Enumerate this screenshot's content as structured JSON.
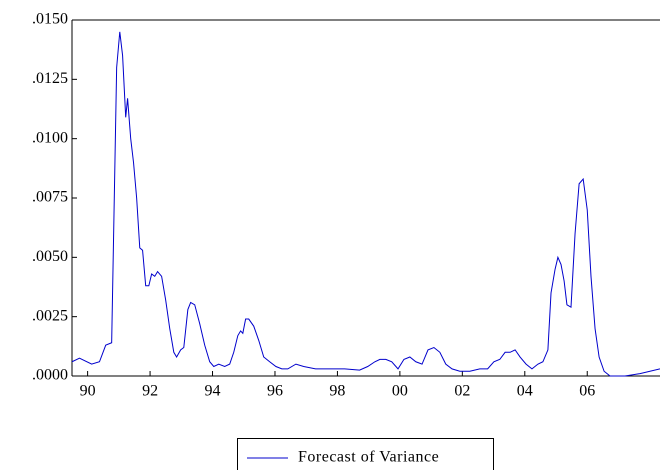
{
  "chart_data": {
    "type": "line",
    "x": [
      1990.0,
      1990.24,
      1990.63,
      1990.88,
      1991.08,
      1991.27,
      1991.43,
      1991.53,
      1991.62,
      1991.72,
      1991.78,
      1991.88,
      1991.97,
      1992.07,
      1992.17,
      1992.26,
      1992.36,
      1992.46,
      1992.55,
      1992.65,
      1992.74,
      1992.87,
      1993.0,
      1993.13,
      1993.26,
      1993.35,
      1993.48,
      1993.58,
      1993.71,
      1993.8,
      1993.93,
      1994.09,
      1994.25,
      1994.41,
      1994.54,
      1994.7,
      1994.89,
      1995.05,
      1995.18,
      1995.31,
      1995.4,
      1995.47,
      1995.56,
      1995.66,
      1995.82,
      1995.98,
      1996.14,
      1996.33,
      1996.53,
      1996.72,
      1996.91,
      1997.17,
      1997.42,
      1997.8,
      1998.25,
      1998.73,
      1999.21,
      1999.47,
      1999.7,
      1999.86,
      2000.05,
      2000.24,
      2000.44,
      2000.63,
      2000.82,
      2001.01,
      2001.21,
      2001.4,
      2001.59,
      2001.78,
      2001.97,
      2002.17,
      2002.42,
      2002.74,
      2003.06,
      2003.31,
      2003.51,
      2003.7,
      2003.87,
      2004.03,
      2004.19,
      2004.35,
      2004.54,
      2004.73,
      2004.92,
      2005.08,
      2005.24,
      2005.34,
      2005.47,
      2005.56,
      2005.66,
      2005.76,
      2005.85,
      2005.98,
      2006.11,
      2006.24,
      2006.37,
      2006.5,
      2006.62,
      2006.75,
      2006.88,
      2007.04,
      2007.23,
      2007.71,
      2008.19,
      2008.83
    ],
    "series": [
      {
        "name": "Forecast of Variance",
        "color": "#0000cc",
        "values": [
          0.0006,
          0.00075,
          0.0005,
          0.0006,
          0.0013,
          0.0014,
          0.013,
          0.0145,
          0.0135,
          0.0109,
          0.0117,
          0.01,
          0.009,
          0.0075,
          0.0054,
          0.0053,
          0.0038,
          0.0038,
          0.0043,
          0.0042,
          0.0044,
          0.0042,
          0.0032,
          0.002,
          0.001,
          0.0008,
          0.0011,
          0.0012,
          0.0028,
          0.0031,
          0.003,
          0.0022,
          0.0013,
          0.0006,
          0.0004,
          0.0005,
          0.0004,
          0.0005,
          0.001,
          0.0017,
          0.0019,
          0.0018,
          0.0024,
          0.0024,
          0.0021,
          0.0015,
          0.0008,
          0.0006,
          0.0004,
          0.0003,
          0.0003,
          0.0005,
          0.0004,
          0.0003,
          0.0003,
          0.0003,
          0.00025,
          0.0004,
          0.0006,
          0.0007,
          0.0007,
          0.0006,
          0.0003,
          0.0007,
          0.0008,
          0.0006,
          0.0005,
          0.0011,
          0.0012,
          0.001,
          0.0005,
          0.0003,
          0.0002,
          0.0002,
          0.0003,
          0.0003,
          0.0006,
          0.0007,
          0.001,
          0.001,
          0.0011,
          0.0008,
          0.0005,
          0.0003,
          0.0005,
          0.0006,
          0.0011,
          0.0035,
          0.0045,
          0.005,
          0.0047,
          0.004,
          0.003,
          0.0029,
          0.006,
          0.0081,
          0.0083,
          0.007,
          0.0042,
          0.002,
          0.0008,
          0.0002,
          0.0,
          0.0,
          0.0001,
          0.0003
        ]
      }
    ],
    "xlim": [
      1990,
      2008.83
    ],
    "xticks": [
      {
        "value": 1990.5,
        "label": "90"
      },
      {
        "value": 1992.5,
        "label": "92"
      },
      {
        "value": 1994.5,
        "label": "94"
      },
      {
        "value": 1996.5,
        "label": "96"
      },
      {
        "value": 1998.5,
        "label": "98"
      },
      {
        "value": 2000.5,
        "label": "00"
      },
      {
        "value": 2002.5,
        "label": "02"
      },
      {
        "value": 2004.5,
        "label": "04"
      },
      {
        "value": 2006.5,
        "label": "06"
      }
    ],
    "ylim": [
      0,
      0.015
    ],
    "yticks": [
      {
        "value": 0,
        "label": ".0000"
      },
      {
        "value": 0.0025,
        "label": ".0025"
      },
      {
        "value": 0.005,
        "label": ".0050"
      },
      {
        "value": 0.0075,
        "label": ".0075"
      },
      {
        "value": 0.01,
        "label": ".0100"
      },
      {
        "value": 0.0125,
        "label": ".0125"
      },
      {
        "value": 0.015,
        "label": ".0150"
      }
    ],
    "legend": "bottom"
  }
}
